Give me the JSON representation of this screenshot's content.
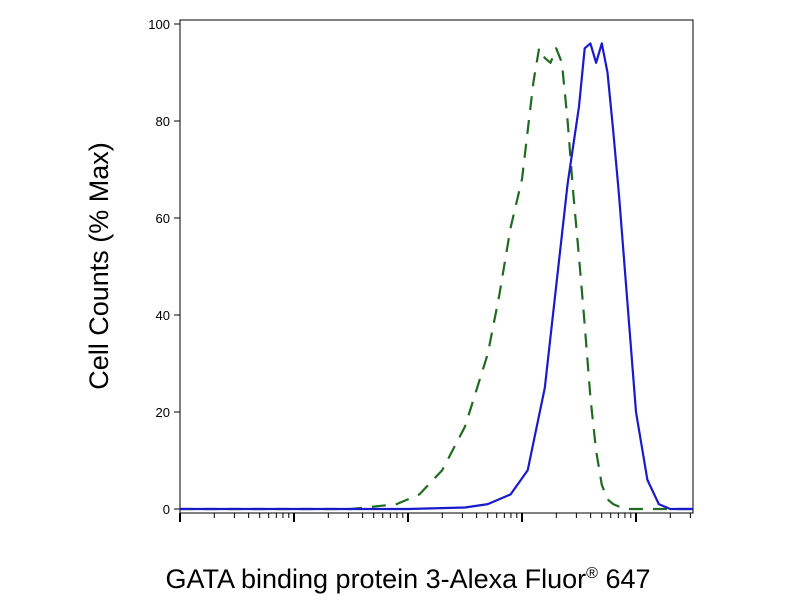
{
  "chart_data": {
    "type": "line",
    "xlabel": "GATA binding protein 3-Alexa Fluor",
    "xlabel_superscript": "®",
    "xlabel_suffix": " 647",
    "ylabel": "Cell Counts (% Max)",
    "ylim": [
      0,
      100
    ],
    "yticks": [
      "0",
      "20",
      "40",
      "60",
      "80",
      "100"
    ],
    "x_scale": "log",
    "xlim": [
      0,
      4.5
    ],
    "grid": false,
    "series": [
      {
        "style": "dashed",
        "color": "#1f6b1f",
        "x": [
          0.0,
          0.5,
          1.0,
          1.3,
          1.5,
          1.7,
          1.9,
          2.1,
          2.3,
          2.5,
          2.7,
          2.8,
          2.9,
          3.0,
          3.05,
          3.1,
          3.15,
          3.2,
          3.25,
          3.3,
          3.35,
          3.4,
          3.45,
          3.5,
          3.55,
          3.6,
          3.65,
          3.7,
          3.75,
          3.8,
          3.9,
          4.0,
          4.1,
          4.2,
          4.3,
          4.4,
          4.5
        ],
        "y": [
          0,
          0,
          0,
          0,
          0,
          0.5,
          1,
          3,
          8,
          17,
          32,
          44,
          58,
          68,
          78,
          88,
          95,
          93,
          92,
          95,
          92,
          80,
          65,
          52,
          38,
          23,
          12,
          5,
          2,
          1,
          0,
          0,
          0,
          0,
          0,
          0,
          0
        ]
      },
      {
        "style": "solid",
        "color": "#1a1acc",
        "x": [
          0.0,
          0.5,
          1.0,
          1.5,
          2.0,
          2.5,
          2.7,
          2.9,
          3.05,
          3.2,
          3.3,
          3.4,
          3.5,
          3.55,
          3.6,
          3.65,
          3.7,
          3.75,
          3.8,
          3.85,
          3.9,
          3.95,
          4.0,
          4.1,
          4.2,
          4.3,
          4.4,
          4.5
        ],
        "y": [
          0,
          0,
          0,
          0,
          0,
          0.3,
          1,
          3,
          8,
          25,
          46,
          67,
          83,
          95,
          96,
          92,
          96,
          90,
          78,
          65,
          50,
          35,
          20,
          6,
          1,
          0,
          0,
          0
        ]
      }
    ]
  }
}
